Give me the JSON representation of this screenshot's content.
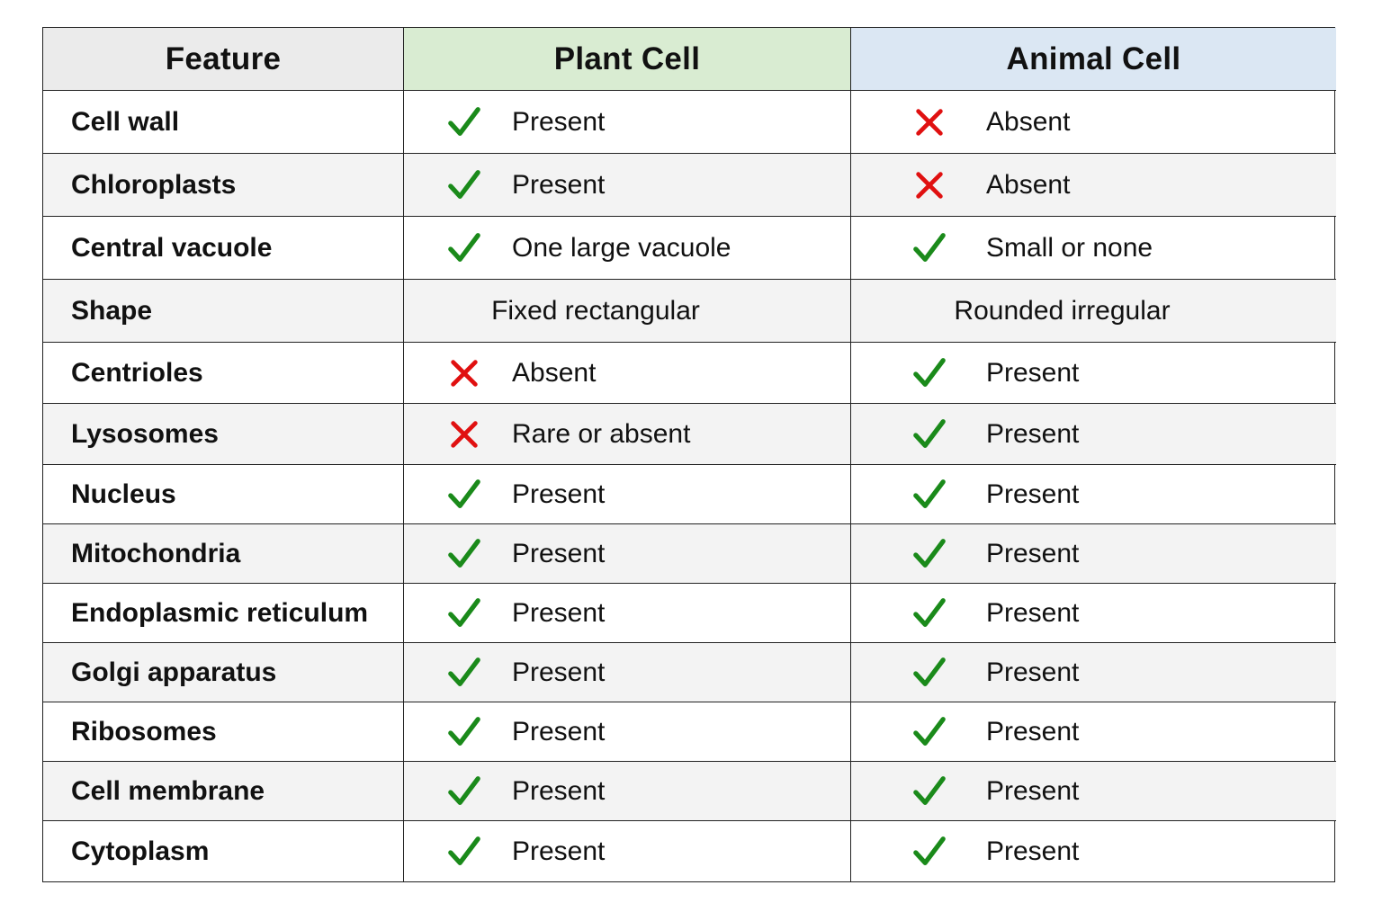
{
  "headers": {
    "feature": "Feature",
    "plant": "Plant Cell",
    "animal": "Animal Cell"
  },
  "colors": {
    "check": "#1a8a1a",
    "cross": "#e01010",
    "header_feature_bg": "#ebebeb",
    "header_plant_bg": "#d9ecd2",
    "header_animal_bg": "#dbe7f3"
  },
  "rows": [
    {
      "feature": "Cell wall",
      "plant": {
        "icon": "check-icon",
        "text": "Present"
      },
      "animal": {
        "icon": "cross-icon",
        "text": "Absent"
      }
    },
    {
      "feature": "Chloroplasts",
      "plant": {
        "icon": "check-icon",
        "text": "Present"
      },
      "animal": {
        "icon": "cross-icon",
        "text": "Absent"
      }
    },
    {
      "feature": "Central vacuole",
      "plant": {
        "icon": "check-icon",
        "text": "One large vacuole"
      },
      "animal": {
        "icon": "check-icon",
        "text": "Small or none"
      }
    },
    {
      "feature": "Shape",
      "plant": {
        "icon": "",
        "text": "Fixed rectangular"
      },
      "animal": {
        "icon": "",
        "text": "Rounded irregular"
      }
    },
    {
      "feature": "Centrioles",
      "plant": {
        "icon": "cross-icon",
        "text": "Absent"
      },
      "animal": {
        "icon": "check-icon",
        "text": "Present"
      }
    },
    {
      "feature": "Lysosomes",
      "plant": {
        "icon": "cross-icon",
        "text": "Rare or absent"
      },
      "animal": {
        "icon": "check-icon",
        "text": "Present"
      }
    },
    {
      "feature": "Nucleus",
      "plant": {
        "icon": "check-icon",
        "text": "Present"
      },
      "animal": {
        "icon": "check-icon",
        "text": "Present"
      }
    },
    {
      "feature": "Mitochondria",
      "plant": {
        "icon": "check-icon",
        "text": "Present"
      },
      "animal": {
        "icon": "check-icon",
        "text": "Present"
      }
    },
    {
      "feature": "Endoplasmic reticulum",
      "plant": {
        "icon": "check-icon",
        "text": "Present"
      },
      "animal": {
        "icon": "check-icon",
        "text": "Present"
      }
    },
    {
      "feature": "Golgi apparatus",
      "plant": {
        "icon": "check-icon",
        "text": "Present"
      },
      "animal": {
        "icon": "check-icon",
        "text": "Present"
      }
    },
    {
      "feature": "Ribosomes",
      "plant": {
        "icon": "check-icon",
        "text": "Present"
      },
      "animal": {
        "icon": "check-icon",
        "text": "Present"
      }
    },
    {
      "feature": "Cell membrane",
      "plant": {
        "icon": "check-icon",
        "text": "Present"
      },
      "animal": {
        "icon": "check-icon",
        "text": "Present"
      }
    },
    {
      "feature": "Cytoplasm",
      "plant": {
        "icon": "check-icon",
        "text": "Present"
      },
      "animal": {
        "icon": "check-icon",
        "text": "Present"
      }
    }
  ]
}
